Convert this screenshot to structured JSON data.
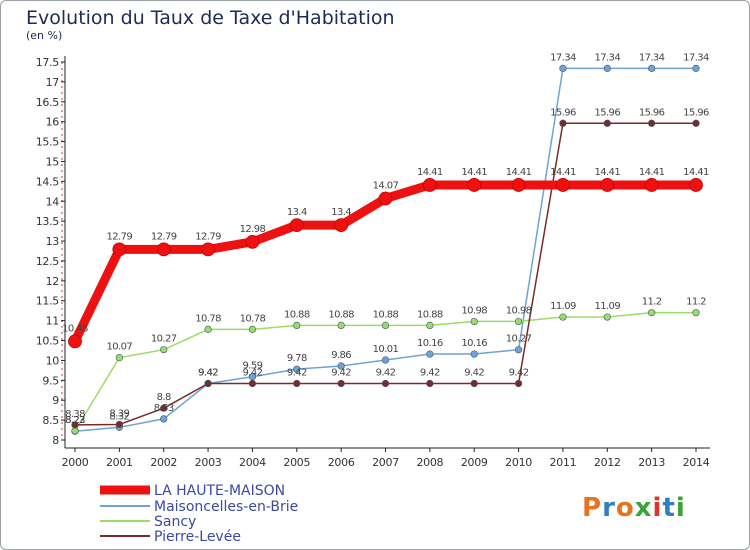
{
  "chart_data": {
    "type": "line",
    "title": "Evolution du Taux de Taxe d'Habitation",
    "subtitle": "(en %)",
    "xlabel": "",
    "ylabel": "",
    "x": [
      "2000",
      "2001",
      "2002",
      "2003",
      "2004",
      "2005",
      "2006",
      "2007",
      "2008",
      "2009",
      "2010",
      "2011",
      "2012",
      "2013",
      "2014"
    ],
    "ylim": [
      8,
      17.5
    ],
    "ytick_step": 0.5,
    "grid": false,
    "legend_position": "bottom-left",
    "series": [
      {
        "name": "LA HAUTE-MAISON",
        "color": "#ee1111",
        "values": [
          10.48,
          12.79,
          12.79,
          12.79,
          12.98,
          13.4,
          13.4,
          14.07,
          14.41,
          14.41,
          14.41,
          14.41,
          14.41,
          14.41,
          14.41
        ],
        "labels": [
          "10.48",
          "12.79",
          "12.79",
          "12.79",
          "12.98",
          "13.4",
          "13.4",
          "14.07",
          "14.41",
          "14.41",
          "14.41",
          "14.41",
          "14.41",
          "14.41",
          "14.41"
        ]
      },
      {
        "name": "Maisoncelles-en-Brie",
        "color": "#6fa2d6",
        "values": [
          8.22,
          8.32,
          8.53,
          9.42,
          9.59,
          9.78,
          9.86,
          10.01,
          10.16,
          10.16,
          10.27,
          17.34,
          17.34,
          17.34,
          17.34
        ],
        "labels": [
          "8.22",
          "8.32",
          "8.53",
          "9.42",
          "9.59",
          "9.78",
          "9.86",
          "10.01",
          "10.16",
          "10.16",
          "10.27",
          "17.34",
          "17.34",
          "17.34",
          "17.34"
        ]
      },
      {
        "name": "Sancy",
        "color": "#99dd66",
        "values": [
          8.23,
          10.07,
          10.27,
          10.78,
          10.78,
          10.88,
          10.88,
          10.88,
          10.88,
          10.98,
          10.98,
          11.09,
          11.09,
          11.2,
          11.2
        ],
        "labels": [
          "8.23",
          "10.07",
          "10.27",
          "10.78",
          "10.78",
          "10.88",
          "10.88",
          "10.88",
          "10.88",
          "10.98",
          "10.98",
          "11.09",
          "11.09",
          "11.2",
          "11.2"
        ]
      },
      {
        "name": "Pierre-Levée",
        "color": "#7a2a2a",
        "values": [
          8.38,
          8.39,
          8.8,
          9.42,
          9.42,
          9.42,
          9.42,
          9.42,
          9.42,
          9.42,
          9.42,
          15.96,
          15.96,
          15.96,
          15.96
        ],
        "labels": [
          "8.38",
          "8.39",
          "8.8",
          "9.42",
          "9.42",
          "9.42",
          "9.42",
          "9.42",
          "9.42",
          "9.42",
          "9.42",
          "15.96",
          "15.96",
          "15.96",
          "15.96"
        ]
      }
    ]
  },
  "logo": {
    "text": "Proxiti",
    "colors": [
      "#e8731e",
      "#2f7fc1",
      "#e8731e",
      "#3aa33a",
      "#e03030",
      "#2f7fc1",
      "#3aa33a"
    ]
  }
}
